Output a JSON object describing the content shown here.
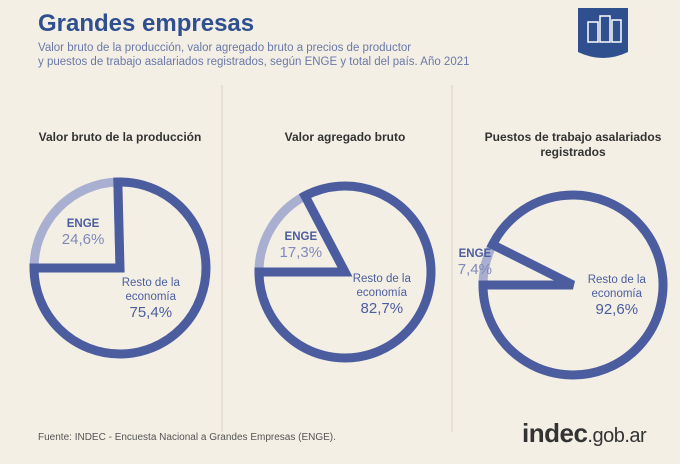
{
  "header": {
    "title": "Grandes empresas",
    "subtitle": [
      "Valor bruto de la producción, valor agregado bruto a precios de productor",
      "y puestos de trabajo asalariados registrados, según ENGE y total del país. Año 2021"
    ]
  },
  "chart_data": [
    {
      "type": "pie",
      "title": "Valor bruto de la producción",
      "categories": [
        "ENGE",
        "Resto de la economía"
      ],
      "values": [
        24.6,
        75.4
      ],
      "value_labels": [
        "24,6%",
        "75,4%"
      ],
      "colors": [
        "#a9afd1",
        "#4b5d9f"
      ]
    },
    {
      "type": "pie",
      "title": "Valor agregado bruto",
      "categories": [
        "ENGE",
        "Resto de la economía"
      ],
      "values": [
        17.3,
        82.7
      ],
      "value_labels": [
        "17,3%",
        "82,7%"
      ],
      "colors": [
        "#a9afd1",
        "#4b5d9f"
      ]
    },
    {
      "type": "pie",
      "title": "Puestos de trabajo asalariados registrados",
      "categories": [
        "ENGE",
        "Resto de la economía"
      ],
      "values": [
        7.4,
        92.6
      ],
      "value_labels": [
        "7,4%",
        "92,6%"
      ],
      "colors": [
        "#a9afd1",
        "#4b5d9f"
      ]
    }
  ],
  "footer": {
    "source": "Fuente: INDEC - Encuesta Nacional a Grandes Empresas (ENGE).",
    "logo": [
      "indec",
      ".gob.ar"
    ]
  }
}
